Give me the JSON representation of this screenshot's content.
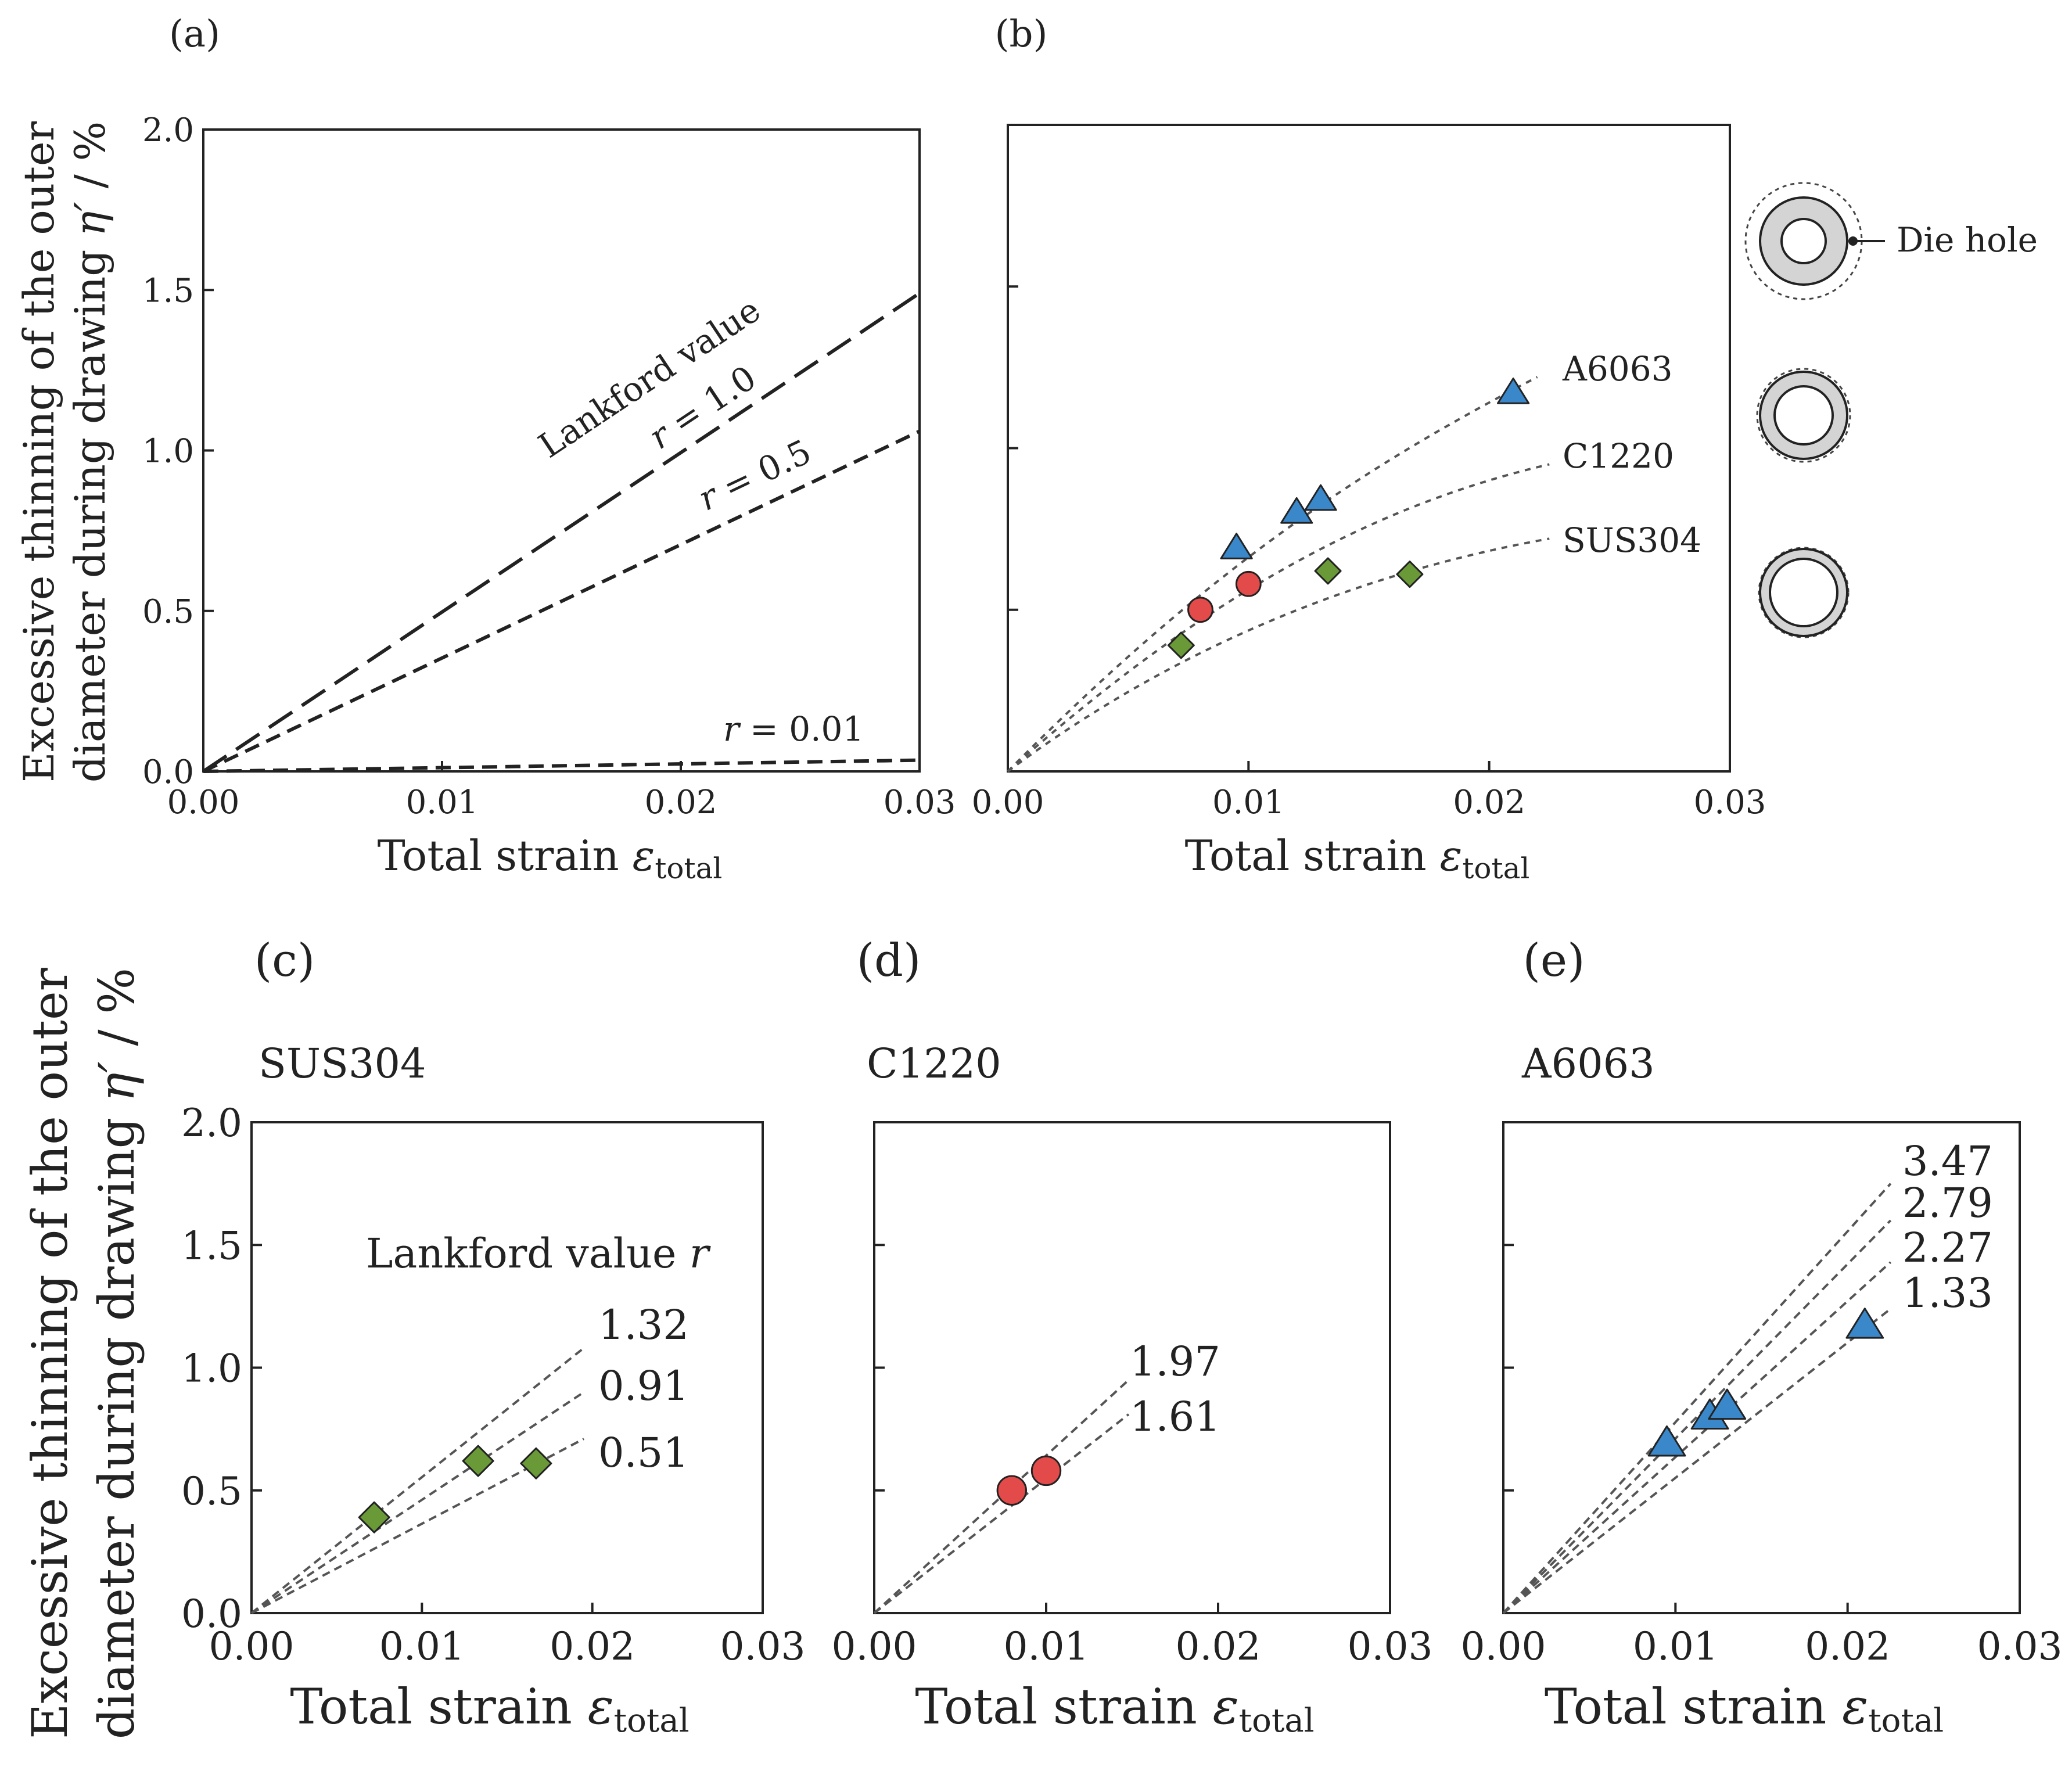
{
  "y_axis_title": {
    "line1": "Excessive thinning of the outer",
    "line2_prefix": "diameter during drawing ",
    "line2_symbol": "η′",
    "line2_suffix": " / %"
  },
  "x_axis_title": {
    "text": "Total strain ",
    "symbol": "ε",
    "subscript": "total"
  },
  "colors": {
    "a6063": "#3a87c9",
    "c1220": "#e34a4a",
    "sus304": "#6a9a38",
    "curve": "#555555",
    "frame": "#222222"
  },
  "chart_data": [
    {
      "id": "a",
      "type": "line",
      "panel_label": "(a)",
      "xlim": [
        0,
        0.03
      ],
      "ylim": [
        0,
        2.0
      ],
      "x_ticks": [
        "0.00",
        "0.01",
        "0.02",
        "0.03"
      ],
      "y_ticks": [
        "0.0",
        "0.5",
        "1.0",
        "1.5",
        "2.0"
      ],
      "annotation": "Lankford value",
      "series": [
        {
          "name": "r = 1.0",
          "r_label": "r",
          "value_label": " = 1.0",
          "x": [
            0,
            0.03
          ],
          "y": [
            0,
            1.49
          ],
          "style": "long-dash"
        },
        {
          "name": "r = 0.5",
          "r_label": "r",
          "value_label": " = 0.5",
          "x": [
            0,
            0.03
          ],
          "y": [
            0,
            1.06
          ],
          "style": "short-dash"
        },
        {
          "name": "r = 0.01",
          "r_label": "r",
          "value_label": " = 0.01",
          "x": [
            0,
            0.03
          ],
          "y": [
            0,
            0.035
          ],
          "style": "short-dash"
        }
      ]
    },
    {
      "id": "b",
      "type": "scatter",
      "panel_label": "(b)",
      "xlim": [
        0,
        0.03
      ],
      "ylim": [
        0,
        2.0
      ],
      "x_ticks": [
        "0.00",
        "0.01",
        "0.02",
        "0.03"
      ],
      "die_hole_label": "Die hole",
      "series": [
        {
          "name": "A6063",
          "marker": "triangle",
          "color": "#3a87c9",
          "x": [
            0.0095,
            0.012,
            0.013,
            0.021
          ],
          "y": [
            0.69,
            0.8,
            0.84,
            1.17
          ],
          "fit": {
            "x": [
              0,
              0.0085,
              0.015,
              0.022
            ],
            "y": [
              0,
              0.64,
              0.95,
              1.22
            ]
          }
        },
        {
          "name": "C1220",
          "marker": "circle",
          "color": "#e34a4a",
          "x": [
            0.008,
            0.01
          ],
          "y": [
            0.5,
            0.58
          ],
          "fit": {
            "x": [
              0,
              0.008,
              0.015,
              0.0225
            ],
            "y": [
              0,
              0.53,
              0.82,
              0.95
            ]
          }
        },
        {
          "name": "SUS304",
          "marker": "diamond",
          "color": "#6a9a38",
          "x": [
            0.0072,
            0.0133,
            0.0167
          ],
          "y": [
            0.39,
            0.62,
            0.61
          ],
          "fit": {
            "x": [
              0,
              0.0072,
              0.015,
              0.0225
            ],
            "y": [
              0,
              0.4,
              0.62,
              0.72
            ]
          }
        }
      ]
    },
    {
      "id": "c",
      "type": "scatter",
      "panel_label": "(c)",
      "material": "SUS304",
      "color": "#6a9a38",
      "marker": "diamond",
      "xlim": [
        0,
        0.03
      ],
      "ylim": [
        0,
        2.0
      ],
      "x_ticks": [
        "0.00",
        "0.01",
        "0.02",
        "0.03"
      ],
      "y_ticks": [
        "0.0",
        "0.5",
        "1.0",
        "1.5",
        "2.0"
      ],
      "legend_title": "Lankford value",
      "legend_symbol": "r",
      "points": {
        "x": [
          0.0072,
          0.0133,
          0.0167
        ],
        "y": [
          0.39,
          0.62,
          0.61
        ]
      },
      "lines": [
        {
          "label": "1.32",
          "end": [
            0.0195,
            1.08
          ]
        },
        {
          "label": "0.91",
          "end": [
            0.0195,
            0.9
          ]
        },
        {
          "label": "0.51",
          "end": [
            0.0195,
            0.71
          ]
        }
      ]
    },
    {
      "id": "d",
      "type": "scatter",
      "panel_label": "(d)",
      "material": "C1220",
      "color": "#e34a4a",
      "marker": "circle",
      "xlim": [
        0,
        0.03
      ],
      "ylim": [
        0,
        2.0
      ],
      "x_ticks": [
        "0.00",
        "0.01",
        "0.02",
        "0.03"
      ],
      "points": {
        "x": [
          0.008,
          0.01
        ],
        "y": [
          0.5,
          0.58
        ]
      },
      "lines": [
        {
          "label": "1.97",
          "end": [
            0.0148,
            0.95
          ]
        },
        {
          "label": "1.61",
          "end": [
            0.0148,
            0.81
          ]
        }
      ]
    },
    {
      "id": "e",
      "type": "scatter",
      "panel_label": "(e)",
      "material": "A6063",
      "color": "#3a87c9",
      "marker": "triangle",
      "xlim": [
        0,
        0.03
      ],
      "ylim": [
        0,
        2.0
      ],
      "x_ticks": [
        "0.00",
        "0.01",
        "0.02",
        "0.03"
      ],
      "points": {
        "x": [
          0.0095,
          0.012,
          0.013,
          0.021
        ],
        "y": [
          0.69,
          0.8,
          0.84,
          1.17
        ]
      },
      "lines": [
        {
          "label": "3.47",
          "end": [
            0.0225,
            1.75
          ]
        },
        {
          "label": "2.79",
          "end": [
            0.0225,
            1.6
          ]
        },
        {
          "label": "2.27",
          "end": [
            0.0225,
            1.43
          ]
        },
        {
          "label": "1.33",
          "end": [
            0.0225,
            1.24
          ]
        }
      ]
    }
  ]
}
